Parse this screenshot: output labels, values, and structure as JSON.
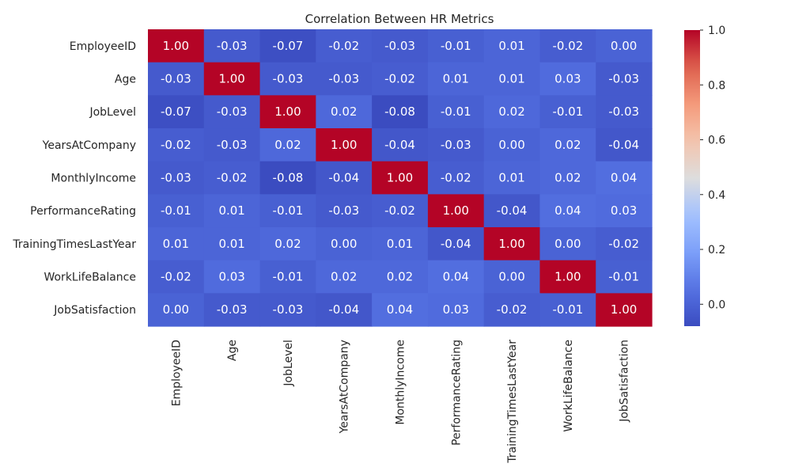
{
  "chart_data": {
    "type": "heatmap",
    "title": "Correlation Between HR Metrics",
    "xlabel": "",
    "ylabel": "",
    "colormap": "coolwarm",
    "value_format": "2 decimals",
    "x": [
      "EmployeeID",
      "Age",
      "JobLevel",
      "YearsAtCompany",
      "MonthlyIncome",
      "PerformanceRating",
      "TrainingTimesLastYear",
      "WorkLifeBalance",
      "JobSatisfaction"
    ],
    "y": [
      "EmployeeID",
      "Age",
      "JobLevel",
      "YearsAtCompany",
      "MonthlyIncome",
      "PerformanceRating",
      "TrainingTimesLastYear",
      "WorkLifeBalance",
      "JobSatisfaction"
    ],
    "values": [
      [
        1.0,
        -0.03,
        -0.07,
        -0.02,
        -0.03,
        -0.01,
        0.01,
        -0.02,
        -0.0
      ],
      [
        -0.03,
        1.0,
        -0.03,
        -0.03,
        -0.02,
        0.01,
        0.01,
        0.03,
        -0.03
      ],
      [
        -0.07,
        -0.03,
        1.0,
        0.02,
        -0.08,
        -0.01,
        0.02,
        -0.01,
        -0.03
      ],
      [
        -0.02,
        -0.03,
        0.02,
        1.0,
        -0.04,
        -0.03,
        0.0,
        0.02,
        -0.04
      ],
      [
        -0.03,
        -0.02,
        -0.08,
        -0.04,
        1.0,
        -0.02,
        0.01,
        0.02,
        0.04
      ],
      [
        -0.01,
        0.01,
        -0.01,
        -0.03,
        -0.02,
        1.0,
        -0.04,
        0.04,
        0.03
      ],
      [
        0.01,
        0.01,
        0.02,
        0.0,
        0.01,
        -0.04,
        1.0,
        -0.0,
        -0.02
      ],
      [
        -0.02,
        0.03,
        -0.01,
        0.02,
        0.02,
        0.04,
        -0.0,
        1.0,
        -0.01
      ],
      [
        -0.0,
        -0.03,
        -0.03,
        -0.04,
        0.04,
        0.03,
        -0.02,
        -0.01,
        1.0
      ]
    ],
    "colorbar": {
      "min": -0.08,
      "max": 1.0,
      "ticks": [
        "0.0",
        "0.2",
        "0.4",
        "0.6",
        "0.8",
        "1.0"
      ]
    }
  }
}
